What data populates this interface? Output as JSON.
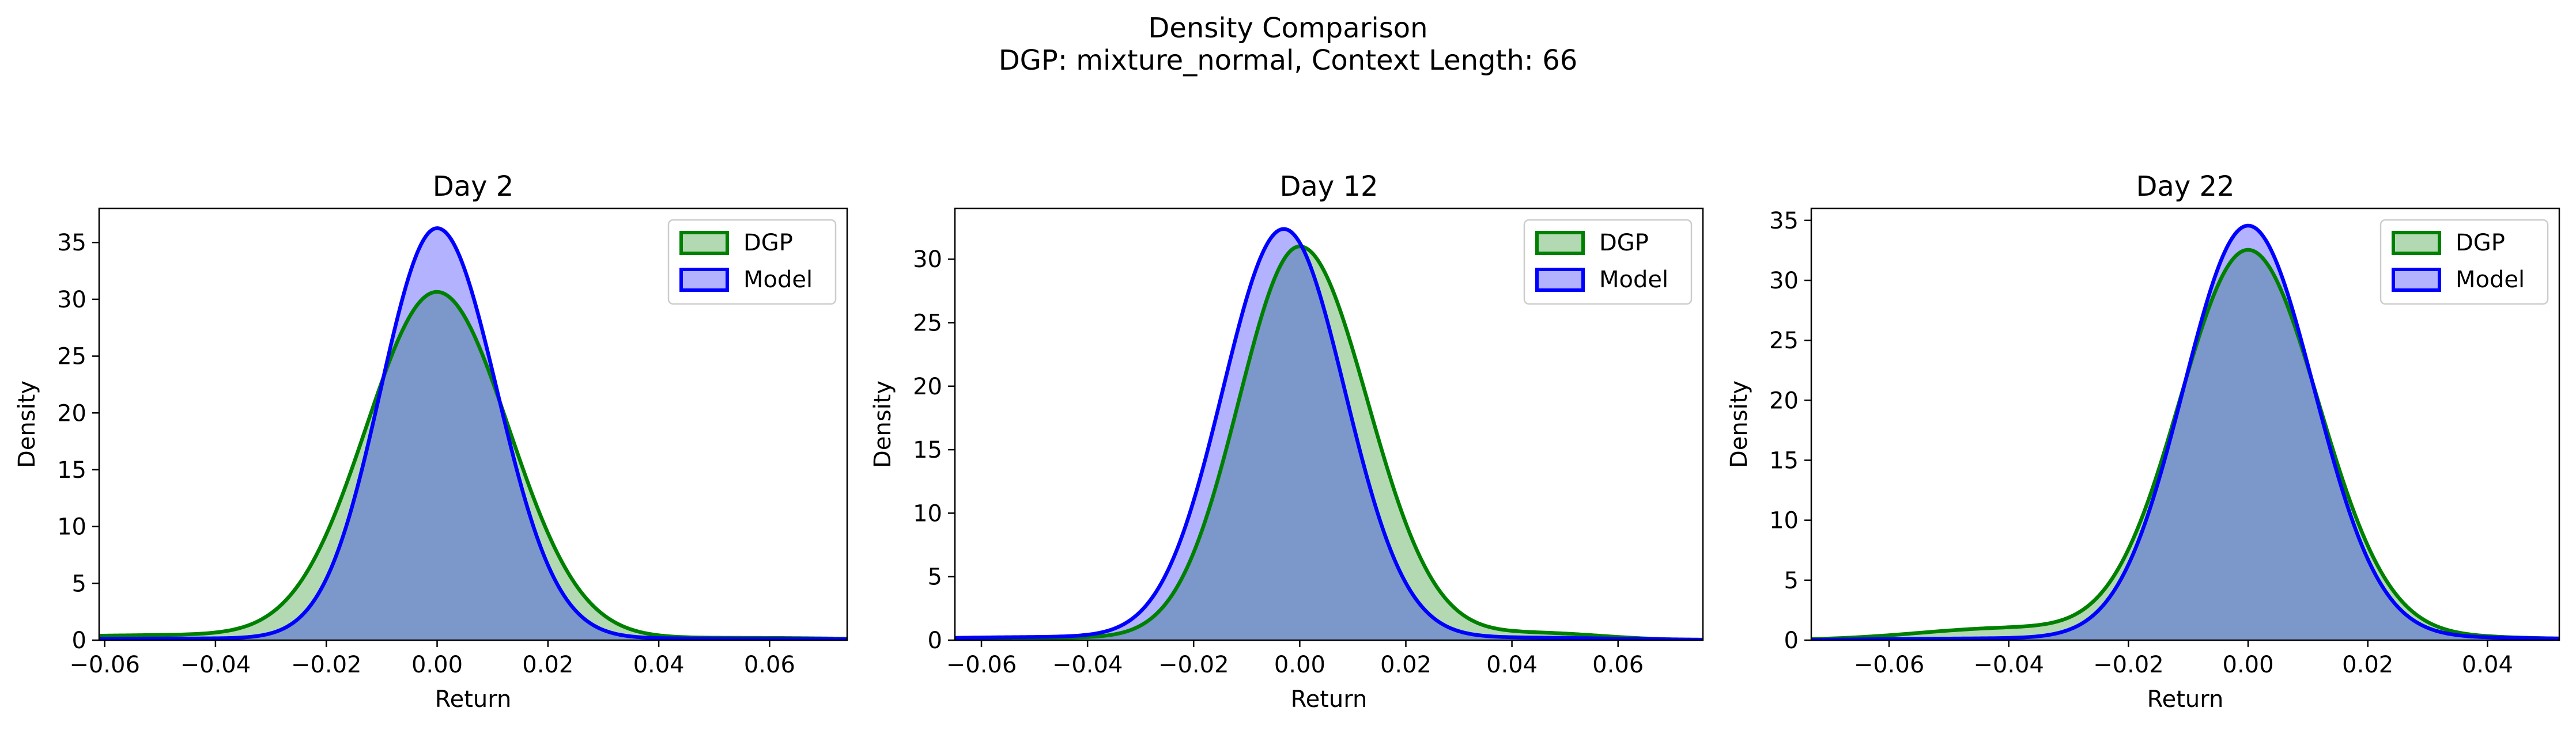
{
  "figure": {
    "title_line1": "Density Comparison",
    "title_line2": "DGP: mixture_normal, Context Length: 66"
  },
  "colors": {
    "dgp_line": "#008000",
    "dgp_fill": "#008000",
    "model_line": "#0000ff",
    "model_fill": "#0000ff",
    "overlap_fill": "#7f97c8"
  },
  "chart_data": [
    {
      "type": "area",
      "title": "Day 2",
      "xlabel": "Return",
      "ylabel": "Density",
      "xlim": [
        -0.061,
        0.074
      ],
      "ylim": [
        0,
        38
      ],
      "xticks": [
        -0.06,
        -0.04,
        -0.02,
        0.0,
        0.02,
        0.04,
        0.06
      ],
      "xtick_labels": [
        "−0.06",
        "−0.04",
        "−0.02",
        "0.00",
        "0.02",
        "0.04",
        "0.06"
      ],
      "yticks": [
        0,
        5,
        10,
        15,
        20,
        25,
        30,
        35
      ],
      "ytick_labels": [
        "0",
        "5",
        "10",
        "15",
        "20",
        "25",
        "30",
        "35"
      ],
      "legend": "top-right",
      "series": [
        {
          "name": "DGP",
          "peak": 30.5,
          "mu": 0.0,
          "sigma_left": 0.0128,
          "sigma_right": 0.013,
          "tail_left": 0.45,
          "tail_left_mu": -0.045,
          "tail_left_sigma": 0.03,
          "tail_right": 0.2,
          "tail_right_mu": 0.055,
          "tail_right_sigma": 0.02
        },
        {
          "name": "Model",
          "peak": 36.2,
          "mu": 0.0,
          "sigma_left": 0.0102,
          "sigma_right": 0.0108,
          "tail_left": 0.15,
          "tail_left_mu": -0.045,
          "tail_left_sigma": 0.025,
          "tail_right": 0.15,
          "tail_right_mu": 0.045,
          "tail_right_sigma": 0.025
        }
      ]
    },
    {
      "type": "area",
      "title": "Day 12",
      "xlabel": "Return",
      "ylabel": "Density",
      "xlim": [
        -0.065,
        0.076
      ],
      "ylim": [
        0,
        34
      ],
      "xticks": [
        -0.06,
        -0.04,
        -0.02,
        0.0,
        0.02,
        0.04,
        0.06
      ],
      "xtick_labels": [
        "−0.06",
        "−0.04",
        "−0.02",
        "0.00",
        "0.02",
        "0.04",
        "0.06"
      ],
      "yticks": [
        0,
        5,
        10,
        15,
        20,
        25,
        30
      ],
      "ytick_labels": [
        "0",
        "5",
        "10",
        "15",
        "20",
        "25",
        "30"
      ],
      "legend": "top-right",
      "series": [
        {
          "name": "DGP",
          "peak": 31.0,
          "mu": 0.0,
          "sigma_left": 0.0115,
          "sigma_right": 0.0128,
          "tail_left": 0.2,
          "tail_left_mu": -0.05,
          "tail_left_sigma": 0.02,
          "tail_right": 0.55,
          "tail_right_mu": 0.045,
          "tail_right_sigma": 0.012
        },
        {
          "name": "Model",
          "peak": 32.3,
          "mu": -0.003,
          "sigma_left": 0.0115,
          "sigma_right": 0.0115,
          "tail_left": 0.25,
          "tail_left_mu": -0.045,
          "tail_left_sigma": 0.025,
          "tail_right": 0.2,
          "tail_right_mu": 0.04,
          "tail_right_sigma": 0.02
        }
      ]
    },
    {
      "type": "area",
      "title": "Day 22",
      "xlabel": "Return",
      "ylabel": "Density",
      "xlim": [
        -0.073,
        0.052
      ],
      "ylim": [
        0,
        36
      ],
      "xticks": [
        -0.06,
        -0.04,
        -0.02,
        0.0,
        0.02,
        0.04
      ],
      "xtick_labels": [
        "−0.06",
        "−0.04",
        "−0.02",
        "0.00",
        "0.02",
        "0.04"
      ],
      "yticks": [
        0,
        5,
        10,
        15,
        20,
        25,
        30,
        35
      ],
      "ytick_labels": [
        "0",
        "5",
        "10",
        "15",
        "20",
        "25",
        "30",
        "35"
      ],
      "legend": "top-right",
      "series": [
        {
          "name": "DGP",
          "peak": 32.5,
          "mu": 0.0,
          "sigma_left": 0.0115,
          "sigma_right": 0.0118,
          "tail_left": 1.0,
          "tail_left_mu": -0.04,
          "tail_left_sigma": 0.015,
          "tail_right": 0.25,
          "tail_right_mu": 0.035,
          "tail_right_sigma": 0.015
        },
        {
          "name": "Model",
          "peak": 34.5,
          "mu": 0.0,
          "sigma_left": 0.0108,
          "sigma_right": 0.011,
          "tail_left": 0.15,
          "tail_left_mu": -0.04,
          "tail_left_sigma": 0.02,
          "tail_right": 0.2,
          "tail_right_mu": 0.035,
          "tail_right_sigma": 0.02
        }
      ]
    }
  ]
}
